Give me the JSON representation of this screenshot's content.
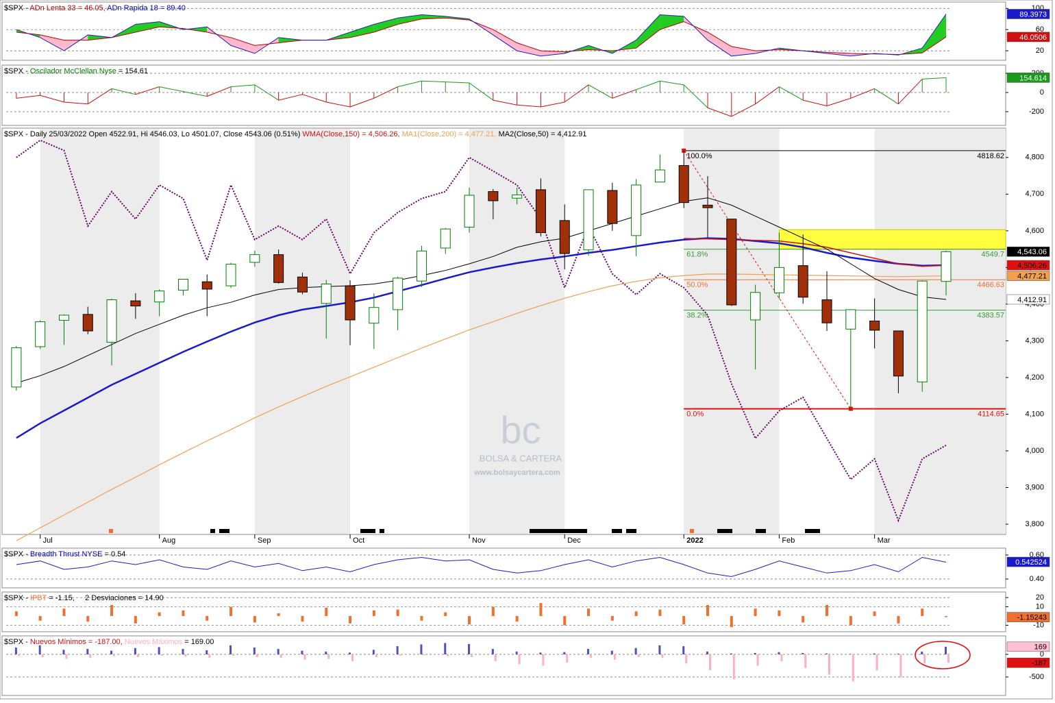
{
  "x_axis": {
    "xlim": [
      -0.6,
      41.5
    ],
    "xticks": [
      {
        "value": 1,
        "label": "Jul"
      },
      {
        "value": 6,
        "label": "Aug"
      },
      {
        "value": 10,
        "label": "Sep"
      },
      {
        "value": 14,
        "label": "Oct"
      },
      {
        "value": 19,
        "label": "Nov"
      },
      {
        "value": 23,
        "label": "Dec"
      },
      {
        "value": 28,
        "label": "2022"
      },
      {
        "value": 32,
        "label": "Feb"
      },
      {
        "value": 36,
        "label": "Mar"
      }
    ]
  },
  "watermark": {
    "logo": "bc",
    "name": "BOLSA & CARTERA",
    "url": "www.bolsaycartera.com"
  },
  "chart_data": [
    {
      "type": "adn",
      "title_parts": [
        {
          "text": "$SPX - ",
          "color": "#000000"
        },
        {
          "text": "ADn Lenta 33 = 46.05,",
          "color": "#c00000"
        },
        {
          "text": " ADn Rapida 18 = 89.40",
          "color": "#0000c0"
        }
      ],
      "ylim": [
        2,
        112
      ],
      "yticks": [
        100,
        60,
        20
      ],
      "fill_up": "#22cc22",
      "fill_down": "#ffb8cc",
      "series": [
        {
          "color": "#c00000",
          "values": [
            55,
            50,
            40,
            40,
            45,
            55,
            65,
            62,
            55,
            45,
            30,
            35,
            40,
            40,
            45,
            55,
            70,
            80,
            82,
            78,
            60,
            35,
            20,
            18,
            22,
            20,
            25,
            60,
            75,
            55,
            28,
            20,
            22,
            20,
            17,
            15,
            14,
            13,
            16,
            46.05
          ]
        },
        {
          "color": "#2020c0",
          "values": [
            60,
            45,
            20,
            50,
            45,
            70,
            75,
            60,
            65,
            30,
            15,
            45,
            40,
            40,
            55,
            70,
            82,
            88,
            85,
            80,
            50,
            20,
            10,
            15,
            30,
            15,
            40,
            88,
            85,
            40,
            10,
            15,
            25,
            20,
            15,
            10,
            15,
            12,
            25,
            89.4
          ]
        }
      ],
      "last_labels": [
        {
          "value": 89.3973,
          "label": "89.3973",
          "bg": "#1a1acc",
          "fg": "#ffffff"
        },
        {
          "value": 46.0506,
          "label": "46.0506",
          "bg": "#d01010",
          "fg": "#ffffff"
        }
      ]
    },
    {
      "type": "oscillator",
      "title_parts": [
        {
          "text": "$SPX - ",
          "color": "#000000"
        },
        {
          "text": "Oscilador McClellan Nyse",
          "color": "#008000"
        },
        {
          "text": " = 154.61",
          "color": "#000000"
        }
      ],
      "ylim": [
        -343,
        286
      ],
      "yticks": [
        200,
        0,
        -200
      ],
      "color_up": "#1a9a1a",
      "color_down": "#d01010",
      "values": [
        -60,
        -30,
        -100,
        -120,
        40,
        -20,
        60,
        10,
        -40,
        60,
        80,
        -80,
        -20,
        -100,
        -150,
        -60,
        60,
        120,
        110,
        100,
        -80,
        -130,
        -150,
        -100,
        80,
        -60,
        30,
        120,
        80,
        -160,
        -250,
        -120,
        60,
        -80,
        -140,
        -60,
        40,
        -120,
        140,
        154.61
      ],
      "last_labels": [
        {
          "value": 154.614,
          "label": "154.614",
          "bg": "#1a9a1a",
          "fg": "#ffffff"
        }
      ]
    },
    {
      "type": "candlestick",
      "title_parts": [
        {
          "text": "$SPX - Daily 25/03/2022 Open 4522.91, Hi 4546.03, Lo 4501.07, Close 4543.06 (0.51%) ",
          "color": "#000000"
        },
        {
          "text": "WMA(Close,150) = 4,506.26, ",
          "color": "#d01010"
        },
        {
          "text": "MA1(Close,200) = 4,477.21, ",
          "color": "#f0a050"
        },
        {
          "text": "MA2(Close,50) = 4,412.91",
          "color": "#000000"
        }
      ],
      "ylim": [
        3772,
        4880
      ],
      "yticks": [
        {
          "value": 3800,
          "label": "3,800"
        },
        {
          "value": 3900,
          "label": "3,900"
        },
        {
          "value": 4000,
          "label": "4,000"
        },
        {
          "value": 4100,
          "label": "4,100"
        },
        {
          "value": 4200,
          "label": "4,200"
        },
        {
          "value": 4300,
          "label": "4,300"
        },
        {
          "value": 4400,
          "label": "4,400"
        },
        {
          "value": 4500,
          "label": "4,500"
        },
        {
          "value": 4600,
          "label": "4,600"
        },
        {
          "value": 4700,
          "label": "4,700"
        },
        {
          "value": 4800,
          "label": "4,800"
        }
      ],
      "color_up": "#008000",
      "color_down": "#a0300a",
      "band_color": "#ececec",
      "open": [
        4174,
        4284,
        4356,
        4372,
        4296,
        4409,
        4406,
        4438,
        4461,
        4450,
        4514,
        4535,
        4474,
        4402,
        4450,
        4348,
        4385,
        4463,
        4553,
        4610,
        4707,
        4689,
        4712,
        4628,
        4548,
        4710,
        4587,
        4733,
        4778,
        4670,
        4632,
        4357,
        4431,
        4505,
        4412,
        4332,
        4354,
        4327,
        4188,
        4462
      ],
      "high": [
        4286,
        4356,
        4372,
        4393,
        4415,
        4430,
        4440,
        4468,
        4481,
        4513,
        4546,
        4549,
        4486,
        4466,
        4465,
        4429,
        4475,
        4559,
        4608,
        4718,
        4714,
        4718,
        4743,
        4672,
        4713,
        4731,
        4741,
        4808,
        4818.62,
        4749,
        4632,
        4453,
        4595,
        4590,
        4490,
        4385,
        4416,
        4327,
        4465,
        4546
      ],
      "low": [
        4164,
        4278,
        4289,
        4318,
        4233,
        4360,
        4367,
        4424,
        4367,
        4444,
        4502,
        4456,
        4427,
        4306,
        4288,
        4278,
        4329,
        4447,
        4537,
        4595,
        4631,
        4672,
        4585,
        4495,
        4532,
        4600,
        4531,
        4733,
        4662,
        4582,
        4395,
        4222,
        4414,
        4401,
        4327,
        4114.65,
        4279,
        4157,
        4161,
        4424
      ],
      "close": [
        4281,
        4352,
        4370,
        4327,
        4412,
        4395,
        4436,
        4468,
        4441,
        4509,
        4535,
        4459,
        4433,
        4455,
        4357,
        4391,
        4471,
        4545,
        4605,
        4697,
        4682,
        4698,
        4595,
        4538,
        4712,
        4620,
        4725,
        4766,
        4677,
        4663,
        4398,
        4432,
        4500,
        4419,
        4349,
        4385,
        4329,
        4204,
        4463,
        4543.06
      ],
      "overlays": [
        {
          "color": "#660066",
          "style": "dotted",
          "width": 2,
          "values": [
            4800,
            4847,
            4819,
            4613,
            4707,
            4632,
            4725,
            4688,
            4520,
            4725,
            4576,
            4613,
            4576,
            4632,
            4483,
            4595,
            4650,
            4688,
            4707,
            4800,
            4763,
            4725,
            4632,
            4445,
            4613,
            4483,
            4426,
            4483,
            4445,
            4370,
            4183,
            4034,
            4109,
            4146,
            4034,
            3922,
            3978,
            3810,
            3978,
            4015
          ]
        },
        {
          "color": "#f0a050",
          "style": "solid",
          "width": 1.2,
          "values": [
            3755,
            3790,
            3825,
            3860,
            3895,
            3928,
            3962,
            3995,
            4027,
            4058,
            4090,
            4120,
            4148,
            4176,
            4202,
            4228,
            4254,
            4280,
            4305,
            4330,
            4352,
            4375,
            4396,
            4416,
            4434,
            4450,
            4462,
            4472,
            4478,
            4482,
            4482,
            4481,
            4480,
            4479,
            4478,
            4477,
            4476,
            4475,
            4476,
            4477.21
          ]
        },
        {
          "color": "#1a1acc",
          "style": "solid",
          "width": 2.5,
          "values": [
            4035,
            4075,
            4110,
            4145,
            4180,
            4210,
            4240,
            4270,
            4298,
            4325,
            4350,
            4370,
            4385,
            4395,
            4405,
            4418,
            4435,
            4452,
            4470,
            4487,
            4500,
            4512,
            4522,
            4530,
            4540,
            4548,
            4558,
            4568,
            4576,
            4580,
            4578,
            4572,
            4566,
            4555,
            4540,
            4527,
            4518,
            4510,
            4505,
            4506.26
          ]
        },
        {
          "color": "#d01010",
          "style": "solid",
          "width": 1.5,
          "start": 28,
          "values": [
            null,
            null,
            null,
            null,
            null,
            null,
            null,
            null,
            null,
            null,
            null,
            null,
            null,
            null,
            null,
            null,
            null,
            null,
            null,
            null,
            null,
            null,
            null,
            null,
            null,
            null,
            null,
            null,
            4579,
            4578,
            4576,
            4574,
            4572,
            4565,
            4555,
            4540,
            4525,
            4510,
            4503,
            4506.26
          ]
        },
        {
          "color": "#000000",
          "style": "solid",
          "width": 1,
          "values": [
            4185,
            4205,
            4230,
            4260,
            4290,
            4320,
            4345,
            4370,
            4390,
            4405,
            4425,
            4440,
            4445,
            4448,
            4450,
            4455,
            4465,
            4478,
            4492,
            4510,
            4530,
            4555,
            4570,
            4580,
            4600,
            4620,
            4640,
            4660,
            4680,
            4690,
            4670,
            4640,
            4610,
            4580,
            4550,
            4510,
            4470,
            4440,
            4420,
            4412.91
          ]
        }
      ],
      "fibonacci": [
        {
          "label": "100.0%",
          "value": 4818.62,
          "color": "#000000"
        },
        {
          "label": "61.8%",
          "value": 4549.7,
          "color": "#3a9a3a"
        },
        {
          "label": "50.0%",
          "value": 4466.63,
          "color": "#f07030"
        },
        {
          "label": "38.2%",
          "value": 4383.57,
          "color": "#3a9a3a"
        },
        {
          "label": "0.0%",
          "value": 4114.65,
          "color": "#e01010"
        }
      ],
      "zone": {
        "range": [
          4549.7,
          4603
        ],
        "color": "#ffff40"
      },
      "last_labels": [
        {
          "value": 4543.06,
          "label": "4,543.06",
          "bg": "#000000",
          "fg": "#ffffff"
        },
        {
          "value": 4506.26,
          "label": "4,506.26",
          "bg": "#e01010",
          "fg": "#000000"
        },
        {
          "value": 4477.21,
          "label": "4,477.21",
          "bg": "#f0a050",
          "fg": "#000000"
        },
        {
          "value": 4412.91,
          "label": "4,412.91",
          "bg": "#ffffff",
          "fg": "#000000"
        }
      ]
    },
    {
      "type": "line",
      "title_parts": [
        {
          "text": "$SPX - ",
          "color": "#000000"
        },
        {
          "text": "Breadth Thrust NYSE",
          "color": "#0000c0"
        },
        {
          "text": " = 0.54",
          "color": "#000000"
        }
      ],
      "ylim": [
        0.326,
        0.657
      ],
      "yticks": [
        {
          "value": 0.6,
          "label": "0.60"
        },
        {
          "value": 0.4,
          "label": "0.40"
        }
      ],
      "color": "#1a1acc",
      "values": [
        0.52,
        0.55,
        0.48,
        0.5,
        0.55,
        0.52,
        0.56,
        0.5,
        0.48,
        0.55,
        0.5,
        0.53,
        0.47,
        0.5,
        0.46,
        0.52,
        0.56,
        0.58,
        0.55,
        0.56,
        0.48,
        0.45,
        0.47,
        0.52,
        0.56,
        0.5,
        0.55,
        0.58,
        0.52,
        0.45,
        0.42,
        0.48,
        0.55,
        0.5,
        0.45,
        0.47,
        0.52,
        0.46,
        0.58,
        0.54
      ],
      "last_labels": [
        {
          "value": 0.542524,
          "label": "0.542524",
          "bg": "#1a1acc",
          "fg": "#ffffff"
        }
      ]
    },
    {
      "type": "bar",
      "title_parts": [
        {
          "text": "$SPX - ",
          "color": "#000000"
        },
        {
          "text": "IPBT",
          "color": "#f07030"
        },
        {
          "text": " = -1.15,     2 Desviaciones = 14.90",
          "color": "#000000"
        }
      ],
      "ylim": [
        -17,
        26
      ],
      "yticks": [
        20,
        10,
        -10
      ],
      "color": "#f07030",
      "values": [
        5,
        -5,
        8,
        -6,
        12,
        -8,
        4,
        6,
        -5,
        10,
        -7,
        3,
        -6,
        9,
        -8,
        6,
        7,
        -5,
        4,
        -9,
        10,
        -6,
        14,
        -10,
        8,
        -5,
        5,
        7,
        -9,
        12,
        -12,
        8,
        6,
        -7,
        12,
        -10,
        5,
        -8,
        8,
        -1.15
      ],
      "last_labels": [
        {
          "value": -1.15243,
          "label": "-1.15243",
          "bg": "#f07030",
          "fg": "#000000"
        }
      ]
    },
    {
      "type": "highs-lows",
      "title_parts": [
        {
          "text": "$SPX - ",
          "color": "#000000"
        },
        {
          "text": "Nuevos Mínimos = -187.00,",
          "color": "#d01010"
        },
        {
          "text": " Nuevos Máximos",
          "color": "#ffb0c0"
        },
        {
          "text": " = 169.00",
          "color": "#000000"
        }
      ],
      "ylim": [
        -909,
        409
      ],
      "yticks": [
        0,
        -500
      ],
      "series": [
        {
          "color": "#5050c0",
          "values": [
            150,
            200,
            100,
            120,
            80,
            140,
            160,
            120,
            90,
            200,
            150,
            120,
            80,
            60,
            40,
            100,
            180,
            220,
            250,
            230,
            120,
            60,
            40,
            50,
            120,
            80,
            140,
            200,
            180,
            60,
            20,
            30,
            50,
            30,
            20,
            10,
            20,
            15,
            60,
            169
          ]
        },
        {
          "color": "#ffb0c0",
          "values": [
            -40,
            -60,
            -100,
            -80,
            -40,
            -60,
            -30,
            -50,
            -80,
            -30,
            -60,
            -80,
            -120,
            -100,
            -150,
            -60,
            -30,
            -20,
            -40,
            -60,
            -150,
            -220,
            -250,
            -180,
            -80,
            -120,
            -60,
            -80,
            -200,
            -350,
            -550,
            -250,
            -150,
            -300,
            -450,
            -600,
            -350,
            -500,
            -200,
            -187
          ]
        }
      ],
      "last_labels": [
        {
          "value": 169,
          "label": "169",
          "bg": "#ffc0d0",
          "fg": "#000000"
        },
        {
          "value": -187,
          "label": "-187",
          "bg": "#e01010",
          "fg": "#000000"
        }
      ]
    }
  ]
}
